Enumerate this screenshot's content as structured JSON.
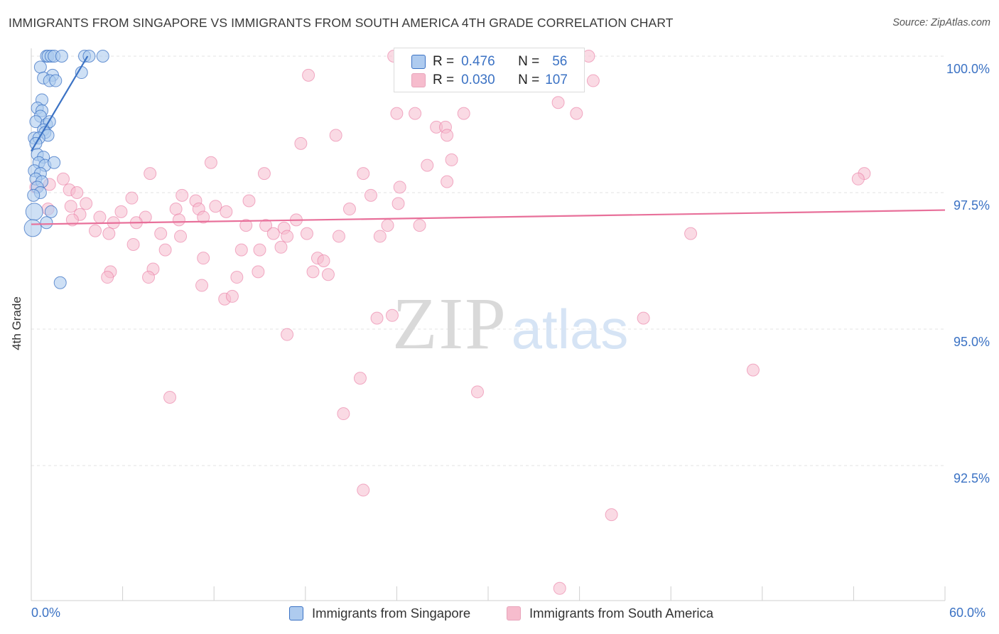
{
  "header": {
    "title": "IMMIGRANTS FROM SINGAPORE VS IMMIGRANTS FROM SOUTH AMERICA 4TH GRADE CORRELATION CHART",
    "source": "Source: ZipAtlas.com"
  },
  "watermark": {
    "zip": "ZIP",
    "atlas": "atlas"
  },
  "legend": {
    "singapore": {
      "r_label": "R =",
      "r": "0.476",
      "n_label": "N =",
      "n": "56"
    },
    "south_america": {
      "r_label": "R =",
      "r": "0.030",
      "n_label": "N =",
      "n": "107"
    }
  },
  "colors": {
    "singapore": "#3b72c4",
    "singapore_fill": "#aecbef",
    "south_america": "#e8709a",
    "south_america_fill": "#f6bccd",
    "tick_label": "#3b72c4",
    "grid": "#e3e3e3"
  },
  "chart_data": {
    "type": "scatter",
    "title": "IMMIGRANTS FROM SINGAPORE VS IMMIGRANTS FROM SOUTH AMERICA 4TH GRADE CORRELATION CHART",
    "xlabel": "",
    "ylabel": "4th Grade",
    "xlim": [
      0,
      60
    ],
    "ylim": [
      90.2,
      100.2
    ],
    "x_tick_labels": [
      "0.0%",
      "60.0%"
    ],
    "y_ticks": [
      92.5,
      95.0,
      97.5,
      100.0
    ],
    "y_tick_labels": [
      "92.5%",
      "95.0%",
      "97.5%",
      "100.0%"
    ],
    "grid": true,
    "legend_position": "bottom",
    "series": [
      {
        "name": "Immigrants from Singapore",
        "color": "#3b72c4",
        "trend": {
          "x": [
            0.0,
            3.7
          ],
          "y": [
            98.26,
            100.0
          ]
        },
        "points": [
          [
            1.0,
            100.0
          ],
          [
            1.1,
            100.0
          ],
          [
            1.3,
            100.0
          ],
          [
            1.5,
            100.0
          ],
          [
            2.0,
            100.0
          ],
          [
            3.5,
            100.0
          ],
          [
            3.8,
            100.0
          ],
          [
            4.7,
            100.0
          ],
          [
            1.4,
            99.65
          ],
          [
            3.3,
            99.7
          ],
          [
            0.6,
            99.8
          ],
          [
            0.8,
            99.6
          ],
          [
            1.2,
            99.55
          ],
          [
            1.6,
            99.55
          ],
          [
            0.7,
            99.2
          ],
          [
            0.4,
            99.05
          ],
          [
            0.7,
            99.0
          ],
          [
            0.6,
            98.9
          ],
          [
            0.3,
            98.8
          ],
          [
            1.0,
            98.75
          ],
          [
            1.2,
            98.8
          ],
          [
            0.8,
            98.65
          ],
          [
            0.9,
            98.6
          ],
          [
            1.1,
            98.55
          ],
          [
            0.2,
            98.5
          ],
          [
            0.5,
            98.5
          ],
          [
            0.3,
            98.4
          ],
          [
            0.4,
            98.2
          ],
          [
            0.8,
            98.15
          ],
          [
            0.5,
            98.05
          ],
          [
            0.9,
            98.0
          ],
          [
            1.5,
            98.05
          ],
          [
            0.2,
            97.9
          ],
          [
            0.6,
            97.85
          ],
          [
            0.3,
            97.75
          ],
          [
            0.7,
            97.7
          ],
          [
            0.4,
            97.6
          ],
          [
            0.6,
            97.5
          ],
          [
            0.15,
            97.45
          ],
          [
            0.2,
            97.15
          ],
          [
            1.3,
            97.15
          ],
          [
            1.0,
            96.95
          ],
          [
            0.1,
            96.85
          ],
          [
            1.9,
            95.85
          ]
        ]
      },
      {
        "name": "Immigrants from South America",
        "color": "#e8709a",
        "trend": {
          "x": [
            0.0,
            60.0
          ],
          "y": [
            96.92,
            97.18
          ]
        },
        "points": [
          [
            23.8,
            100.0
          ],
          [
            33.0,
            99.95
          ],
          [
            36.6,
            100.0
          ],
          [
            35.4,
            99.6
          ],
          [
            36.9,
            99.55
          ],
          [
            29.5,
            99.6
          ],
          [
            18.2,
            99.65
          ],
          [
            34.6,
            99.15
          ],
          [
            24.0,
            98.95
          ],
          [
            25.2,
            98.95
          ],
          [
            28.4,
            98.95
          ],
          [
            35.8,
            98.95
          ],
          [
            26.6,
            98.7
          ],
          [
            27.2,
            98.7
          ],
          [
            27.3,
            98.55
          ],
          [
            20.0,
            98.55
          ],
          [
            17.7,
            98.4
          ],
          [
            27.6,
            98.1
          ],
          [
            26.0,
            98.0
          ],
          [
            11.8,
            98.05
          ],
          [
            7.8,
            97.85
          ],
          [
            15.3,
            97.85
          ],
          [
            21.8,
            97.85
          ],
          [
            54.7,
            97.85
          ],
          [
            54.3,
            97.75
          ],
          [
            27.3,
            97.7
          ],
          [
            24.2,
            97.6
          ],
          [
            2.1,
            97.75
          ],
          [
            1.2,
            97.65
          ],
          [
            0.3,
            97.6
          ],
          [
            2.5,
            97.55
          ],
          [
            3.0,
            97.5
          ],
          [
            9.9,
            97.45
          ],
          [
            6.6,
            97.4
          ],
          [
            10.8,
            97.35
          ],
          [
            14.3,
            97.35
          ],
          [
            22.3,
            97.45
          ],
          [
            3.6,
            97.3
          ],
          [
            2.6,
            97.25
          ],
          [
            1.1,
            97.2
          ],
          [
            9.5,
            97.2
          ],
          [
            5.9,
            97.15
          ],
          [
            11.0,
            97.2
          ],
          [
            12.1,
            97.25
          ],
          [
            12.8,
            97.15
          ],
          [
            7.5,
            97.05
          ],
          [
            3.2,
            97.1
          ],
          [
            4.5,
            97.05
          ],
          [
            9.7,
            97.0
          ],
          [
            11.3,
            97.05
          ],
          [
            17.4,
            97.0
          ],
          [
            20.9,
            97.2
          ],
          [
            24.1,
            97.3
          ],
          [
            2.7,
            97.0
          ],
          [
            5.4,
            96.95
          ],
          [
            6.9,
            96.95
          ],
          [
            14.1,
            96.9
          ],
          [
            15.4,
            96.9
          ],
          [
            16.6,
            96.85
          ],
          [
            23.4,
            96.9
          ],
          [
            25.5,
            96.9
          ],
          [
            8.5,
            96.75
          ],
          [
            9.8,
            96.7
          ],
          [
            5.1,
            96.75
          ],
          [
            4.2,
            96.8
          ],
          [
            15.9,
            96.75
          ],
          [
            16.8,
            96.7
          ],
          [
            18.1,
            96.75
          ],
          [
            20.2,
            96.7
          ],
          [
            22.9,
            96.7
          ],
          [
            43.3,
            96.75
          ],
          [
            6.7,
            96.55
          ],
          [
            8.8,
            96.45
          ],
          [
            13.8,
            96.45
          ],
          [
            15.0,
            96.45
          ],
          [
            16.4,
            96.5
          ],
          [
            11.3,
            96.3
          ],
          [
            18.8,
            96.3
          ],
          [
            19.2,
            96.25
          ],
          [
            8.0,
            96.1
          ],
          [
            14.9,
            96.05
          ],
          [
            18.5,
            96.05
          ],
          [
            19.5,
            96.0
          ],
          [
            5.2,
            96.05
          ],
          [
            5.0,
            95.95
          ],
          [
            7.7,
            95.95
          ],
          [
            13.5,
            95.95
          ],
          [
            11.2,
            95.8
          ],
          [
            12.7,
            95.55
          ],
          [
            13.2,
            95.6
          ],
          [
            22.7,
            95.2
          ],
          [
            23.7,
            95.25
          ],
          [
            40.2,
            95.2
          ],
          [
            16.8,
            94.9
          ],
          [
            47.4,
            94.25
          ],
          [
            21.6,
            94.1
          ],
          [
            29.3,
            93.85
          ],
          [
            9.1,
            93.75
          ],
          [
            20.5,
            93.45
          ],
          [
            21.8,
            92.05
          ],
          [
            38.1,
            91.6
          ],
          [
            34.7,
            90.25
          ]
        ]
      }
    ]
  },
  "bottom_legend": {
    "items": [
      {
        "label": "Immigrants from Singapore"
      },
      {
        "label": "Immigrants from South America"
      }
    ]
  }
}
